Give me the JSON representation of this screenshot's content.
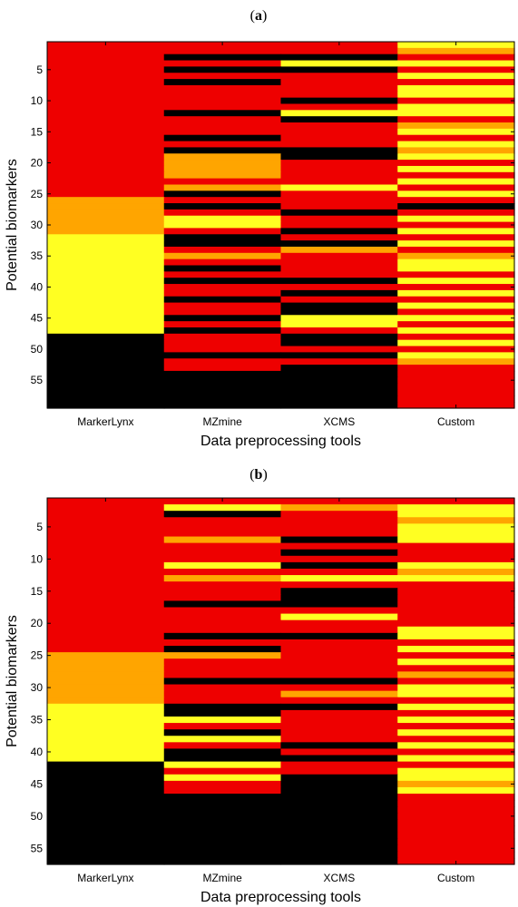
{
  "figure": {
    "panel_a_label": {
      "open": "(",
      "letter": "a",
      "close": ")"
    },
    "panel_b_label": {
      "open": "(",
      "letter": "b",
      "close": ")"
    }
  },
  "palette": {
    "0": "#000000",
    "1": "#ee0000",
    "2": "#ffa500",
    "3": "#ffff22"
  },
  "chart_data": [
    {
      "id": "a",
      "type": "heatmap",
      "title": "",
      "xlabel": "Data preprocessing tools",
      "ylabel": "Potential biomarkers",
      "categories": [
        "MarkerLynx",
        "MZmine",
        "XCMS",
        "Custom"
      ],
      "y_range": [
        1,
        59
      ],
      "y_ticks": [
        5,
        10,
        15,
        20,
        25,
        30,
        35,
        40,
        45,
        50,
        55
      ],
      "color_map": {
        "0": "black",
        "1": "red",
        "2": "orange",
        "3": "yellow"
      },
      "matrix_by_row": [
        [
          1,
          1,
          1,
          3
        ],
        [
          1,
          1,
          1,
          2
        ],
        [
          1,
          0,
          0,
          1
        ],
        [
          1,
          1,
          3,
          3
        ],
        [
          1,
          0,
          0,
          1
        ],
        [
          1,
          1,
          1,
          3
        ],
        [
          1,
          0,
          1,
          1
        ],
        [
          1,
          1,
          1,
          3
        ],
        [
          1,
          1,
          1,
          3
        ],
        [
          1,
          1,
          0,
          1
        ],
        [
          1,
          1,
          1,
          3
        ],
        [
          1,
          0,
          3,
          3
        ],
        [
          1,
          1,
          0,
          1
        ],
        [
          1,
          1,
          1,
          2
        ],
        [
          1,
          1,
          1,
          3
        ],
        [
          1,
          0,
          1,
          1
        ],
        [
          1,
          1,
          1,
          3
        ],
        [
          1,
          0,
          0,
          2
        ],
        [
          1,
          2,
          0,
          3
        ],
        [
          1,
          2,
          1,
          1
        ],
        [
          1,
          2,
          1,
          3
        ],
        [
          1,
          2,
          1,
          1
        ],
        [
          1,
          1,
          1,
          3
        ],
        [
          1,
          2,
          3,
          1
        ],
        [
          1,
          0,
          1,
          3
        ],
        [
          2,
          1,
          1,
          1
        ],
        [
          2,
          0,
          1,
          0
        ],
        [
          2,
          1,
          0,
          1
        ],
        [
          2,
          3,
          1,
          3
        ],
        [
          2,
          3,
          1,
          1
        ],
        [
          2,
          1,
          0,
          3
        ],
        [
          3,
          0,
          1,
          1
        ],
        [
          3,
          0,
          0,
          3
        ],
        [
          3,
          1,
          2,
          1
        ],
        [
          3,
          2,
          1,
          2
        ],
        [
          3,
          1,
          1,
          3
        ],
        [
          3,
          0,
          1,
          3
        ],
        [
          3,
          1,
          1,
          1
        ],
        [
          3,
          0,
          0,
          3
        ],
        [
          3,
          1,
          1,
          1
        ],
        [
          3,
          1,
          0,
          3
        ],
        [
          3,
          0,
          1,
          1
        ],
        [
          3,
          1,
          0,
          3
        ],
        [
          3,
          1,
          0,
          1
        ],
        [
          3,
          0,
          3,
          3
        ],
        [
          3,
          1,
          3,
          1
        ],
        [
          3,
          0,
          1,
          3
        ],
        [
          0,
          1,
          0,
          1
        ],
        [
          0,
          1,
          0,
          3
        ],
        [
          0,
          1,
          1,
          1
        ],
        [
          0,
          0,
          0,
          3
        ],
        [
          0,
          1,
          1,
          2
        ],
        [
          0,
          1,
          0,
          1
        ],
        [
          0,
          0,
          0,
          1
        ],
        [
          0,
          0,
          0,
          1
        ],
        [
          0,
          0,
          0,
          1
        ],
        [
          0,
          0,
          0,
          1
        ],
        [
          0,
          0,
          0,
          1
        ],
        [
          0,
          0,
          0,
          1
        ]
      ]
    },
    {
      "id": "b",
      "type": "heatmap",
      "title": "",
      "xlabel": "Data preprocessing tools",
      "ylabel": "Potential biomarkers",
      "categories": [
        "MarkerLynx",
        "MZmine",
        "XCMS",
        "Custom"
      ],
      "y_range": [
        1,
        57
      ],
      "y_ticks": [
        5,
        10,
        15,
        20,
        25,
        30,
        35,
        40,
        45,
        50,
        55
      ],
      "color_map": {
        "0": "black",
        "1": "red",
        "2": "orange",
        "3": "yellow"
      },
      "matrix_by_row": [
        [
          1,
          1,
          1,
          1
        ],
        [
          1,
          3,
          2,
          3
        ],
        [
          1,
          0,
          1,
          3
        ],
        [
          1,
          1,
          1,
          2
        ],
        [
          1,
          1,
          1,
          3
        ],
        [
          1,
          1,
          1,
          3
        ],
        [
          1,
          2,
          0,
          3
        ],
        [
          1,
          1,
          1,
          1
        ],
        [
          1,
          1,
          0,
          1
        ],
        [
          1,
          1,
          1,
          1
        ],
        [
          1,
          3,
          0,
          3
        ],
        [
          1,
          1,
          1,
          2
        ],
        [
          1,
          2,
          3,
          3
        ],
        [
          1,
          1,
          1,
          1
        ],
        [
          1,
          1,
          0,
          1
        ],
        [
          1,
          1,
          0,
          1
        ],
        [
          1,
          0,
          0,
          1
        ],
        [
          1,
          1,
          1,
          1
        ],
        [
          1,
          1,
          3,
          1
        ],
        [
          1,
          1,
          1,
          1
        ],
        [
          1,
          1,
          1,
          3
        ],
        [
          1,
          0,
          0,
          3
        ],
        [
          1,
          1,
          1,
          1
        ],
        [
          1,
          0,
          1,
          3
        ],
        [
          2,
          2,
          1,
          1
        ],
        [
          2,
          1,
          1,
          3
        ],
        [
          2,
          1,
          1,
          1
        ],
        [
          2,
          1,
          1,
          2
        ],
        [
          2,
          0,
          0,
          1
        ],
        [
          2,
          1,
          1,
          3
        ],
        [
          2,
          1,
          2,
          3
        ],
        [
          2,
          1,
          1,
          1
        ],
        [
          3,
          0,
          0,
          3
        ],
        [
          3,
          0,
          1,
          1
        ],
        [
          3,
          3,
          1,
          3
        ],
        [
          3,
          1,
          1,
          1
        ],
        [
          3,
          0,
          1,
          3
        ],
        [
          3,
          3,
          1,
          1
        ],
        [
          3,
          1,
          0,
          3
        ],
        [
          3,
          0,
          1,
          1
        ],
        [
          3,
          0,
          0,
          3
        ],
        [
          0,
          3,
          1,
          1
        ],
        [
          0,
          1,
          1,
          3
        ],
        [
          0,
          3,
          0,
          3
        ],
        [
          0,
          1,
          0,
          2
        ],
        [
          0,
          1,
          0,
          3
        ],
        [
          0,
          0,
          0,
          1
        ],
        [
          0,
          0,
          0,
          1
        ],
        [
          0,
          0,
          0,
          1
        ],
        [
          0,
          0,
          0,
          1
        ],
        [
          0,
          0,
          0,
          1
        ],
        [
          0,
          0,
          0,
          1
        ],
        [
          0,
          0,
          0,
          1
        ],
        [
          0,
          0,
          0,
          1
        ],
        [
          0,
          0,
          0,
          1
        ],
        [
          0,
          0,
          0,
          1
        ],
        [
          0,
          0,
          0,
          1
        ]
      ]
    }
  ]
}
